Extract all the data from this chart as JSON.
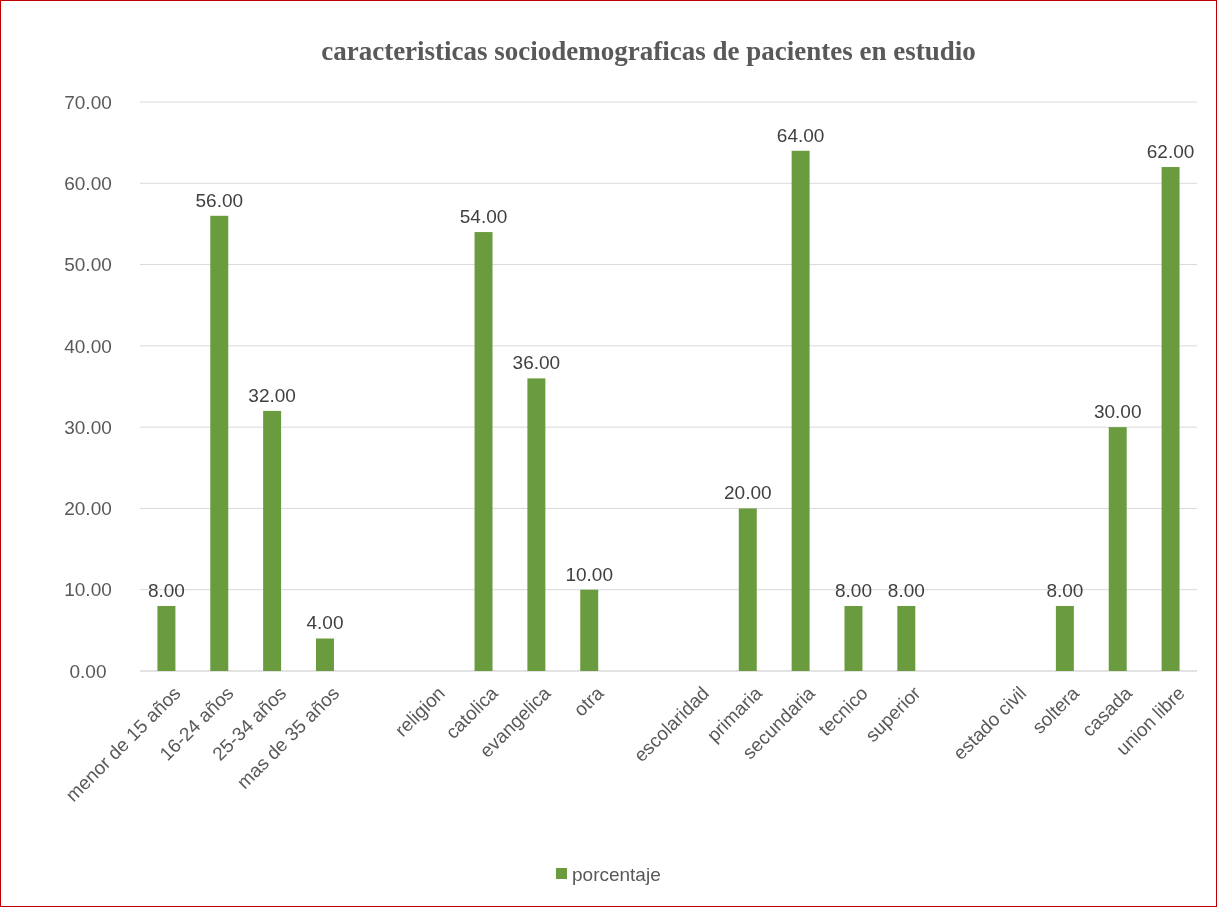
{
  "chart_data": {
    "type": "bar",
    "title": "caracteristicas sociodemograficas de pacientes en estudio",
    "categories": [
      "menor de 15 años",
      "16-24 años",
      "25-34 años",
      "mas de 35 años",
      null,
      "religion",
      "catolica",
      "evangelica",
      "otra",
      null,
      "escolaridad",
      "primaria",
      "secundaria",
      "tecnico",
      "superior",
      null,
      "estado civil",
      "soltera",
      "casada",
      "union libre"
    ],
    "series": [
      {
        "name": "porcentaje",
        "color": "#6a9c3f",
        "values": [
          8,
          56,
          32,
          4,
          null,
          null,
          54,
          36,
          10,
          null,
          null,
          20,
          64,
          8,
          8,
          null,
          null,
          8,
          30,
          62
        ],
        "value_labels": [
          "8.00",
          "56.00",
          "32.00",
          "4.00",
          null,
          null,
          "54.00",
          "36.00",
          "10.00",
          null,
          null,
          "20.00",
          "64.00",
          "8.00",
          "8.00",
          null,
          null,
          "8.00",
          "30.00",
          "62.00"
        ]
      }
    ],
    "ylim": [
      0,
      70
    ],
    "yticks": [
      {
        "value": 0,
        "label": "0.00"
      },
      {
        "value": 10,
        "label": "10.00"
      },
      {
        "value": 20,
        "label": "20.00"
      },
      {
        "value": 30,
        "label": "30.00"
      },
      {
        "value": 40,
        "label": "40.00"
      },
      {
        "value": 50,
        "label": "50.00"
      },
      {
        "value": 60,
        "label": "60.00"
      },
      {
        "value": 70,
        "label": "70.00"
      }
    ],
    "grid": "y",
    "legend": "bottom"
  }
}
